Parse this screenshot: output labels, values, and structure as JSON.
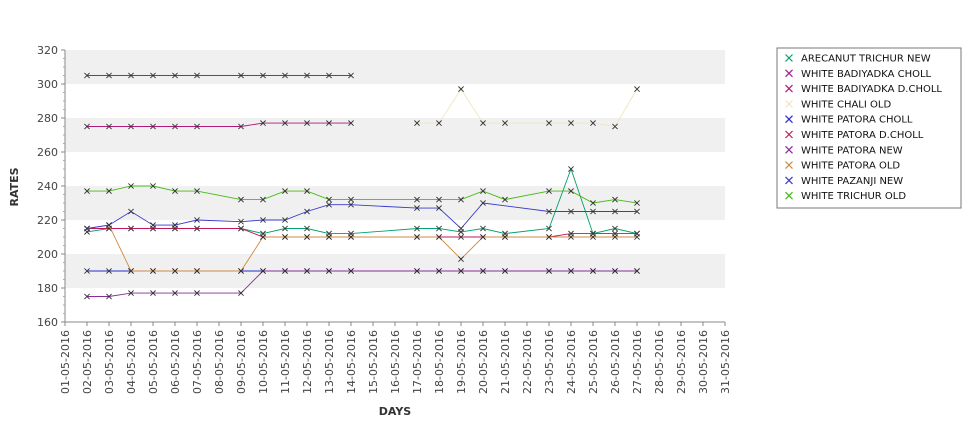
{
  "chart_data": {
    "type": "line",
    "title": "",
    "xlabel": "DAYS",
    "ylabel": "RATES",
    "ylim": [
      160,
      320
    ],
    "yticks": [
      160,
      180,
      200,
      220,
      240,
      260,
      280,
      300,
      320
    ],
    "grid": "alternating horizontal bands",
    "legend_position": "right",
    "x": [
      "01-05-2016",
      "02-05-2016",
      "03-05-2016",
      "04-05-2016",
      "05-05-2016",
      "06-05-2016",
      "07-05-2016",
      "08-05-2016",
      "09-05-2016",
      "10-05-2016",
      "11-05-2016",
      "12-05-2016",
      "13-05-2016",
      "14-05-2016",
      "15-05-2016",
      "16-05-2016",
      "17-05-2016",
      "18-05-2016",
      "19-05-2016",
      "20-05-2016",
      "21-05-2016",
      "22-05-2016",
      "23-05-2016",
      "24-05-2016",
      "25-05-2016",
      "26-05-2016",
      "27-05-2016",
      "28-05-2016",
      "29-05-2016",
      "30-05-2016",
      "31-05-2016"
    ],
    "series": [
      {
        "name": "ARECANUT TRICHUR NEW",
        "color": "#00a070",
        "values": [
          null,
          213,
          215,
          215,
          215,
          215,
          215,
          null,
          215,
          212,
          215,
          215,
          212,
          212,
          null,
          null,
          215,
          215,
          213,
          215,
          212,
          null,
          215,
          250,
          212,
          215,
          212,
          null,
          null,
          null,
          null
        ]
      },
      {
        "name": "WHITE BADIYADKA CHOLL",
        "color": "#a0208f",
        "values": [
          null,
          305,
          305,
          305,
          305,
          305,
          305,
          null,
          305,
          305,
          305,
          305,
          305,
          305,
          null,
          null,
          null,
          null,
          null,
          null,
          null,
          null,
          null,
          null,
          null,
          null,
          null,
          null,
          null,
          null,
          null
        ]
      },
      {
        "name": "WHITE BADIYADKA D.CHOLL",
        "color": "#b0187a",
        "values": [
          null,
          275,
          275,
          275,
          275,
          275,
          275,
          null,
          275,
          277,
          277,
          277,
          277,
          277,
          null,
          null,
          null,
          null,
          null,
          null,
          null,
          null,
          null,
          null,
          null,
          null,
          null,
          null,
          null,
          null,
          null
        ]
      },
      {
        "name": "WHITE CHALI OLD",
        "color": "#f0e6c0",
        "values": [
          null,
          null,
          null,
          null,
          null,
          null,
          null,
          null,
          null,
          null,
          null,
          null,
          null,
          null,
          null,
          null,
          277,
          277,
          297,
          277,
          277,
          null,
          277,
          277,
          277,
          275,
          297,
          null,
          null,
          null,
          null
        ]
      },
      {
        "name": "WHITE PATORA CHOLL",
        "color": "#2a2acc",
        "values": [
          null,
          190,
          190,
          190,
          190,
          190,
          190,
          null,
          190,
          190,
          190,
          190,
          190,
          190,
          null,
          null,
          190,
          190,
          190,
          190,
          190,
          null,
          190,
          190,
          190,
          190,
          190,
          null,
          null,
          null,
          null
        ]
      },
      {
        "name": "WHITE PATORA D.CHOLL",
        "color": "#c0185a",
        "values": [
          null,
          215,
          215,
          215,
          215,
          215,
          215,
          null,
          215,
          210,
          210,
          210,
          210,
          210,
          null,
          null,
          210,
          210,
          210,
          210,
          210,
          null,
          210,
          212,
          212,
          212,
          212,
          null,
          null,
          null,
          null
        ]
      },
      {
        "name": "WHITE PATORA NEW",
        "color": "#8a2a9a",
        "values": [
          null,
          175,
          175,
          177,
          177,
          177,
          177,
          null,
          177,
          190,
          190,
          190,
          190,
          190,
          null,
          null,
          190,
          190,
          190,
          190,
          190,
          null,
          190,
          190,
          190,
          190,
          190,
          null,
          null,
          null,
          null
        ]
      },
      {
        "name": "WHITE PATORA OLD",
        "color": "#d08a40",
        "values": [
          null,
          215,
          217,
          190,
          190,
          190,
          190,
          null,
          190,
          210,
          210,
          210,
          210,
          210,
          null,
          null,
          210,
          210,
          197,
          210,
          210,
          null,
          210,
          210,
          210,
          210,
          210,
          null,
          null,
          null,
          null
        ]
      },
      {
        "name": "WHITE PAZANJI NEW",
        "color": "#3a3acc",
        "values": [
          null,
          215,
          217,
          225,
          217,
          217,
          220,
          null,
          219,
          220,
          220,
          225,
          229,
          229,
          null,
          null,
          227,
          227,
          215,
          230,
          null,
          null,
          225,
          225,
          225,
          225,
          225,
          null,
          null,
          null,
          null
        ]
      },
      {
        "name": "WHITE TRICHUR OLD",
        "color": "#44bb11",
        "values": [
          null,
          237,
          237,
          240,
          240,
          237,
          237,
          null,
          232,
          232,
          237,
          237,
          232,
          232,
          null,
          null,
          232,
          232,
          232,
          237,
          232,
          null,
          237,
          237,
          230,
          232,
          230,
          null,
          null,
          null,
          null
        ]
      }
    ]
  }
}
